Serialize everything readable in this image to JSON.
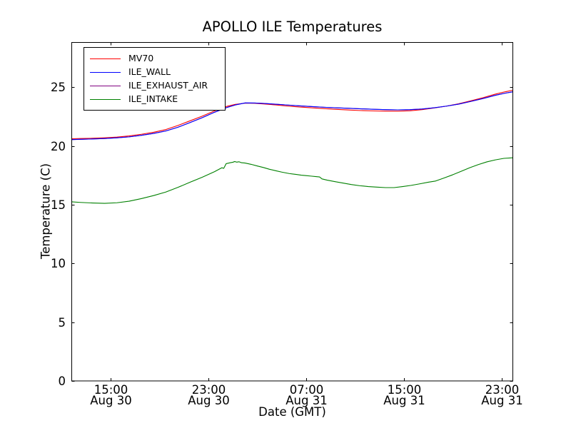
{
  "chart_data": {
    "type": "line",
    "title": "APOLLO ILE Temperatures",
    "xlabel": "Date (GMT)",
    "ylabel": "Temperature (C)",
    "x_unit_note": "hours since Aug 30 12:00 GMT",
    "xlim": [
      -0.2,
      35.93
    ],
    "ylim": [
      0,
      28.82
    ],
    "grid": false,
    "legend_position": "upper left",
    "y_ticks": [
      0,
      5,
      10,
      15,
      20,
      25
    ],
    "x_ticks": [
      {
        "t": 3,
        "time": "15:00",
        "date": "Aug 30"
      },
      {
        "t": 11,
        "time": "23:00",
        "date": "Aug 30"
      },
      {
        "t": 19,
        "time": "07:00",
        "date": "Aug 31"
      },
      {
        "t": 27,
        "time": "15:00",
        "date": "Aug 31"
      },
      {
        "t": 35,
        "time": "23:00",
        "date": "Aug 31"
      }
    ],
    "series": [
      {
        "name": "MV70",
        "color": "#ff0000",
        "points": [
          [
            -0.2,
            20.62
          ],
          [
            0.5,
            20.64
          ],
          [
            1.5,
            20.66
          ],
          [
            2.5,
            20.7
          ],
          [
            3.5,
            20.76
          ],
          [
            4.5,
            20.86
          ],
          [
            5.5,
            21.0
          ],
          [
            6.5,
            21.17
          ],
          [
            7.5,
            21.4
          ],
          [
            8.5,
            21.75
          ],
          [
            9.5,
            22.15
          ],
          [
            10.5,
            22.55
          ],
          [
            11.5,
            23.0
          ],
          [
            12.5,
            23.38
          ],
          [
            13.2,
            23.55
          ],
          [
            14.0,
            23.65
          ],
          [
            14.8,
            23.64
          ],
          [
            15.6,
            23.58
          ],
          [
            16.5,
            23.5
          ],
          [
            17.5,
            23.4
          ],
          [
            18.5,
            23.32
          ],
          [
            19.5,
            23.25
          ],
          [
            20.5,
            23.18
          ],
          [
            21.5,
            23.12
          ],
          [
            22.5,
            23.07
          ],
          [
            23.5,
            23.02
          ],
          [
            24.5,
            22.99
          ],
          [
            25.5,
            22.97
          ],
          [
            26.5,
            22.97
          ],
          [
            27.5,
            23.0
          ],
          [
            28.5,
            23.1
          ],
          [
            29.5,
            23.24
          ],
          [
            30.5,
            23.4
          ],
          [
            31.5,
            23.6
          ],
          [
            32.5,
            23.85
          ],
          [
            33.5,
            24.12
          ],
          [
            34.5,
            24.42
          ],
          [
            35.3,
            24.62
          ],
          [
            35.93,
            24.75
          ]
        ]
      },
      {
        "name": "ILE_WALL",
        "color": "#0000ff",
        "points": [
          [
            -0.2,
            20.55
          ],
          [
            0.5,
            20.57
          ],
          [
            1.5,
            20.6
          ],
          [
            2.5,
            20.64
          ],
          [
            3.5,
            20.7
          ],
          [
            4.5,
            20.78
          ],
          [
            5.5,
            20.91
          ],
          [
            6.5,
            21.07
          ],
          [
            7.5,
            21.28
          ],
          [
            8.5,
            21.6
          ],
          [
            9.5,
            22.0
          ],
          [
            10.5,
            22.42
          ],
          [
            11.5,
            22.88
          ],
          [
            12.5,
            23.28
          ],
          [
            13.2,
            23.5
          ],
          [
            14.0,
            23.67
          ],
          [
            14.8,
            23.66
          ],
          [
            15.6,
            23.62
          ],
          [
            16.5,
            23.56
          ],
          [
            17.5,
            23.49
          ],
          [
            18.5,
            23.42
          ],
          [
            19.5,
            23.36
          ],
          [
            20.5,
            23.3
          ],
          [
            21.5,
            23.25
          ],
          [
            22.5,
            23.21
          ],
          [
            23.5,
            23.17
          ],
          [
            24.5,
            23.13
          ],
          [
            25.5,
            23.1
          ],
          [
            26.5,
            23.08
          ],
          [
            27.5,
            23.1
          ],
          [
            28.5,
            23.15
          ],
          [
            29.5,
            23.26
          ],
          [
            30.5,
            23.4
          ],
          [
            31.5,
            23.57
          ],
          [
            32.5,
            23.8
          ],
          [
            33.5,
            24.05
          ],
          [
            34.5,
            24.32
          ],
          [
            35.3,
            24.5
          ],
          [
            35.93,
            24.62
          ]
        ]
      },
      {
        "name": "ILE_EXHAUST_AIR",
        "color": "#800080",
        "points": [
          [
            -0.2,
            20.55
          ],
          [
            0.5,
            20.57
          ],
          [
            1.5,
            20.6
          ],
          [
            2.5,
            20.64
          ],
          [
            3.5,
            20.7
          ],
          [
            4.5,
            20.78
          ],
          [
            5.5,
            20.91
          ],
          [
            6.5,
            21.07
          ],
          [
            7.5,
            21.28
          ],
          [
            8.5,
            21.6
          ],
          [
            9.5,
            22.0
          ],
          [
            10.5,
            22.42
          ],
          [
            11.5,
            22.88
          ],
          [
            12.5,
            23.28
          ],
          [
            13.2,
            23.5
          ],
          [
            14.0,
            23.67
          ],
          [
            14.8,
            23.66
          ],
          [
            15.6,
            23.62
          ],
          [
            16.5,
            23.56
          ],
          [
            17.5,
            23.49
          ],
          [
            18.5,
            23.42
          ],
          [
            19.5,
            23.36
          ],
          [
            20.5,
            23.3
          ],
          [
            21.5,
            23.25
          ],
          [
            22.5,
            23.21
          ],
          [
            23.5,
            23.17
          ],
          [
            24.5,
            23.13
          ],
          [
            25.5,
            23.1
          ],
          [
            26.5,
            23.08
          ],
          [
            27.5,
            23.1
          ],
          [
            28.5,
            23.15
          ],
          [
            29.5,
            23.26
          ],
          [
            30.5,
            23.4
          ],
          [
            31.5,
            23.57
          ],
          [
            32.5,
            23.8
          ],
          [
            33.5,
            24.05
          ],
          [
            34.5,
            24.32
          ],
          [
            35.3,
            24.5
          ],
          [
            35.93,
            24.62
          ]
        ]
      },
      {
        "name": "ILE_INTAKE",
        "color": "#008000",
        "points": [
          [
            -0.2,
            15.25
          ],
          [
            0.5,
            15.2
          ],
          [
            1.5,
            15.15
          ],
          [
            2.5,
            15.12
          ],
          [
            3.5,
            15.17
          ],
          [
            4.5,
            15.3
          ],
          [
            5.5,
            15.52
          ],
          [
            6.5,
            15.78
          ],
          [
            7.5,
            16.08
          ],
          [
            8.5,
            16.48
          ],
          [
            9.5,
            16.92
          ],
          [
            10.5,
            17.35
          ],
          [
            11.5,
            17.82
          ],
          [
            12.1,
            18.15
          ],
          [
            12.25,
            18.1
          ],
          [
            12.45,
            18.5
          ],
          [
            12.8,
            18.58
          ],
          [
            13.0,
            18.62
          ],
          [
            13.15,
            18.68
          ],
          [
            13.3,
            18.63
          ],
          [
            13.5,
            18.66
          ],
          [
            13.7,
            18.58
          ],
          [
            14.0,
            18.55
          ],
          [
            14.5,
            18.44
          ],
          [
            15.0,
            18.3
          ],
          [
            15.5,
            18.17
          ],
          [
            16.0,
            18.02
          ],
          [
            16.5,
            17.9
          ],
          [
            17.0,
            17.78
          ],
          [
            17.3,
            17.72
          ],
          [
            17.6,
            17.66
          ],
          [
            17.9,
            17.62
          ],
          [
            18.2,
            17.58
          ],
          [
            18.6,
            17.52
          ],
          [
            19.0,
            17.48
          ],
          [
            19.4,
            17.44
          ],
          [
            19.8,
            17.4
          ],
          [
            20.1,
            17.37
          ],
          [
            20.3,
            17.2
          ],
          [
            20.7,
            17.1
          ],
          [
            21.3,
            16.98
          ],
          [
            22.0,
            16.85
          ],
          [
            22.7,
            16.72
          ],
          [
            23.4,
            16.62
          ],
          [
            24.1,
            16.55
          ],
          [
            24.8,
            16.5
          ],
          [
            25.5,
            16.46
          ],
          [
            26.2,
            16.46
          ],
          [
            26.9,
            16.55
          ],
          [
            27.6,
            16.65
          ],
          [
            28.3,
            16.78
          ],
          [
            29.0,
            16.92
          ],
          [
            29.6,
            17.02
          ],
          [
            30.3,
            17.28
          ],
          [
            31.0,
            17.55
          ],
          [
            31.7,
            17.85
          ],
          [
            32.4,
            18.15
          ],
          [
            33.1,
            18.42
          ],
          [
            33.8,
            18.65
          ],
          [
            34.5,
            18.82
          ],
          [
            35.2,
            18.95
          ],
          [
            35.93,
            19.0
          ]
        ]
      }
    ]
  }
}
